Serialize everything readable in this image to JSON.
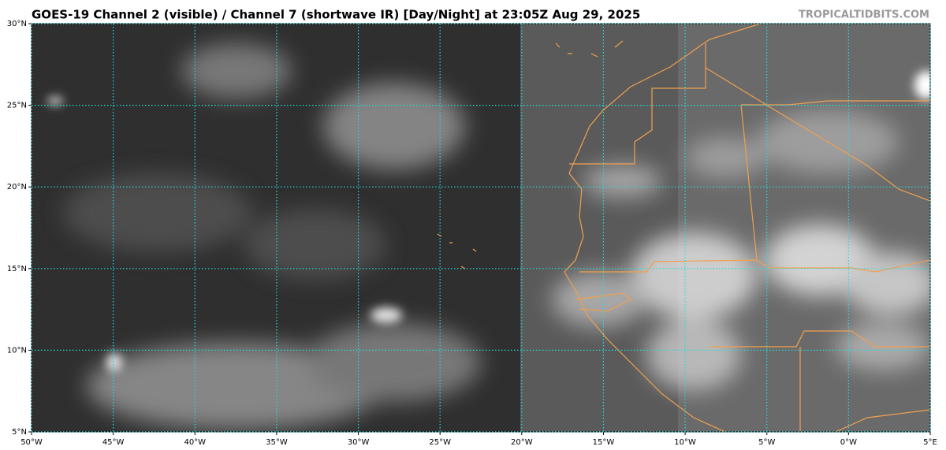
{
  "map": {
    "title": "GOES-19 Channel 2 (visible) / Channel 7 (shortwave IR) [Day/Night] at 23:05Z Aug 29, 2025",
    "credit": "TROPICALTIDBITS.COM",
    "xlim": [
      -50,
      5
    ],
    "ylim": [
      5,
      30
    ],
    "xticks": [
      {
        "value": -50,
        "label": "50°W"
      },
      {
        "value": -45,
        "label": "45°W"
      },
      {
        "value": -40,
        "label": "40°W"
      },
      {
        "value": -35,
        "label": "35°W"
      },
      {
        "value": -30,
        "label": "30°W"
      },
      {
        "value": -25,
        "label": "25°W"
      },
      {
        "value": -20,
        "label": "20°W"
      },
      {
        "value": -15,
        "label": "15°W"
      },
      {
        "value": -10,
        "label": "10°W"
      },
      {
        "value": -5,
        "label": "5°W"
      },
      {
        "value": 0,
        "label": "0°W"
      },
      {
        "value": 5,
        "label": "5°E"
      }
    ],
    "yticks": [
      {
        "value": 5,
        "label": "5°N"
      },
      {
        "value": 10,
        "label": "10°N"
      },
      {
        "value": 15,
        "label": "15°N"
      },
      {
        "value": 20,
        "label": "20°N"
      },
      {
        "value": 25,
        "label": "25°N"
      },
      {
        "value": 30,
        "label": "30°N"
      }
    ]
  }
}
